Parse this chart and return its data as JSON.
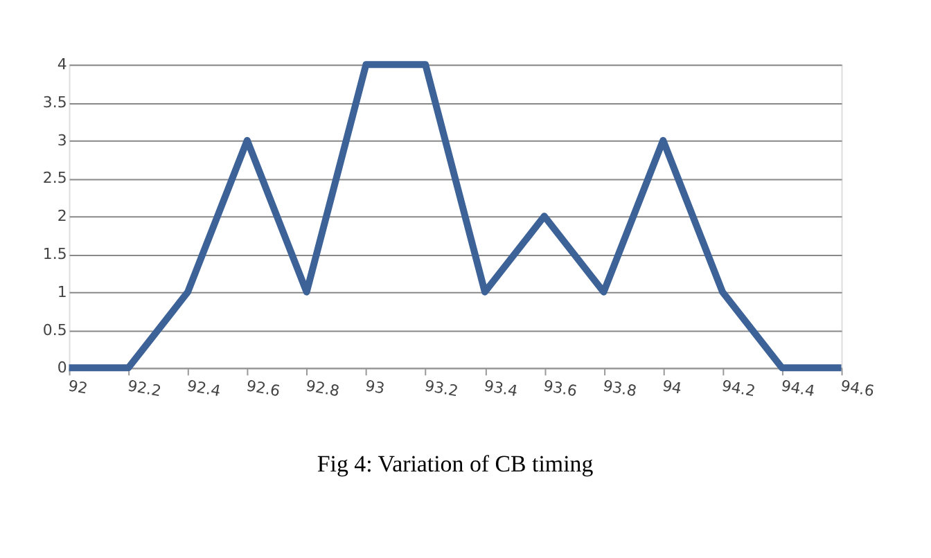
{
  "chart_data": {
    "type": "line",
    "title": "Fig 4: Variation of CB timing",
    "categories": [
      "92",
      "92.2",
      "92.4",
      "92.6",
      "92.8",
      "93",
      "93.2",
      "93.4",
      "93.6",
      "93.8",
      "94",
      "94.2",
      "94.4",
      "94.6"
    ],
    "series": [
      {
        "color": "#3d6298",
        "values": [
          0,
          0,
          1,
          3,
          1,
          4,
          4,
          1,
          2,
          1,
          3,
          1,
          0,
          0
        ]
      }
    ],
    "ylim": [
      0,
      4
    ],
    "yticks": [
      0,
      0.5,
      1,
      1.5,
      2,
      2.5,
      3,
      3.5,
      4
    ],
    "grid": "y",
    "legend": false,
    "marker": "none",
    "line_style": "solid"
  }
}
